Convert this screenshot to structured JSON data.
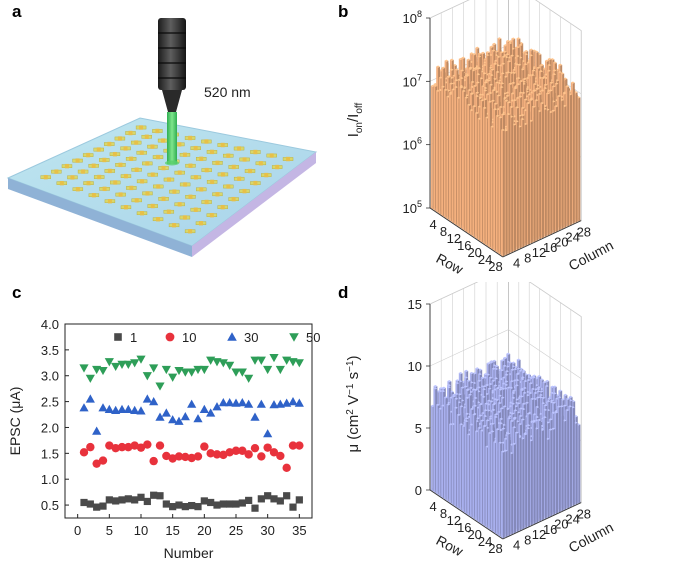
{
  "panel_labels": {
    "a": "a",
    "b": "b",
    "c": "c",
    "d": "d"
  },
  "panel_a": {
    "wavelength_label": "520 nm",
    "array_size": 10
  },
  "colors": {
    "bar_onoff": "#f4b07e",
    "bar_mobility": "#a9b0ee",
    "series_1": "#4a4a4a",
    "series_10": "#e8323c",
    "series_30": "#2f62c8",
    "series_50": "#2e9e58"
  },
  "chart_data": [
    {
      "id": "b",
      "type": "bar3d",
      "title": "",
      "zlabel": "I_on/I_off",
      "zlabel_main": "I",
      "zlabel_sub1": "on",
      "zlabel_mid": "/I",
      "zlabel_sub2": "off",
      "zscale": "log",
      "zlim": [
        100000,
        100000000
      ],
      "zticks": [
        {
          "base": "10",
          "exp": "5",
          "value": 100000
        },
        {
          "base": "10",
          "exp": "6",
          "value": 1000000
        },
        {
          "base": "10",
          "exp": "7",
          "value": 10000000
        },
        {
          "base": "10",
          "exp": "8",
          "value": 100000000
        }
      ],
      "rows": 28,
      "columns": 28,
      "row_label": "Row",
      "column_label": "Column",
      "row_ticks": [
        "4",
        "8",
        "12",
        "16",
        "20",
        "24",
        "28"
      ],
      "column_ticks": [
        "4",
        "8",
        "12",
        "16",
        "20",
        "24",
        "28"
      ],
      "value_range": [
        5000000,
        20000000
      ],
      "typical_value": 10000000
    },
    {
      "id": "c",
      "type": "scatter",
      "xlabel": "Number",
      "ylabel": "EPSC (μA)",
      "xlim": [
        -2,
        37
      ],
      "ylim": [
        0.25,
        4.0
      ],
      "xticks": [
        "0",
        "5",
        "10",
        "15",
        "20",
        "25",
        "30",
        "35"
      ],
      "yticks": [
        "0.5",
        "1.0",
        "1.5",
        "2.0",
        "2.5",
        "3.0",
        "3.5",
        "4.0"
      ],
      "x": [
        1,
        2,
        3,
        4,
        5,
        6,
        7,
        8,
        9,
        10,
        11,
        12,
        13,
        14,
        15,
        16,
        17,
        18,
        19,
        20,
        21,
        22,
        23,
        24,
        25,
        26,
        27,
        28,
        29,
        30,
        31,
        32,
        33,
        34,
        35
      ],
      "series": [
        {
          "name": "1",
          "marker": "square",
          "values": [
            0.55,
            0.52,
            0.46,
            0.48,
            0.6,
            0.58,
            0.6,
            0.62,
            0.6,
            0.65,
            0.57,
            0.69,
            0.68,
            0.52,
            0.47,
            0.5,
            0.47,
            0.49,
            0.47,
            0.58,
            0.55,
            0.5,
            0.52,
            0.52,
            0.52,
            0.54,
            0.59,
            0.44,
            0.62,
            0.68,
            0.62,
            0.58,
            0.68,
            0.46,
            0.6
          ]
        },
        {
          "name": "10",
          "marker": "circle",
          "values": [
            1.52,
            1.62,
            1.3,
            1.36,
            1.65,
            1.6,
            1.62,
            1.62,
            1.65,
            1.61,
            1.67,
            1.35,
            1.65,
            1.45,
            1.4,
            1.44,
            1.43,
            1.41,
            1.44,
            1.63,
            1.5,
            1.48,
            1.47,
            1.52,
            1.55,
            1.55,
            1.48,
            1.6,
            1.44,
            1.61,
            1.52,
            1.45,
            1.22,
            1.65,
            1.65
          ]
        },
        {
          "name": "30",
          "marker": "triangle-up",
          "values": [
            2.38,
            2.55,
            1.93,
            2.38,
            2.35,
            2.33,
            2.35,
            2.35,
            2.33,
            2.32,
            2.55,
            2.5,
            2.2,
            2.28,
            2.15,
            2.12,
            2.21,
            2.45,
            2.17,
            2.35,
            2.28,
            2.4,
            2.48,
            2.48,
            2.47,
            2.48,
            2.45,
            2.2,
            2.45,
            1.88,
            2.44,
            2.45,
            2.47,
            2.5,
            2.47
          ]
        },
        {
          "name": "50",
          "marker": "triangle-down",
          "values": [
            3.15,
            2.95,
            3.12,
            3.1,
            3.27,
            3.18,
            3.22,
            3.22,
            3.25,
            3.32,
            3.0,
            3.15,
            2.8,
            3.12,
            2.97,
            3.1,
            3.07,
            3.07,
            3.12,
            3.12,
            3.3,
            3.27,
            3.25,
            3.2,
            3.07,
            3.07,
            2.95,
            3.3,
            3.3,
            3.12,
            3.35,
            3.12,
            3.3,
            3.27,
            3.25
          ]
        }
      ],
      "legend": "top",
      "grid": false
    },
    {
      "id": "d",
      "type": "bar3d",
      "title": "",
      "zlabel": "μ (cm² V⁻¹ s⁻¹)",
      "zlabel_pre": "μ (cm",
      "zlabel_sup1": "2",
      "zlabel_mid1": " V",
      "zlabel_sup2": "−1",
      "zlabel_mid2": " s",
      "zlabel_sup3": "−1",
      "zlabel_post": ")",
      "zscale": "linear",
      "zlim": [
        0,
        15
      ],
      "zticks": [
        {
          "label": "0",
          "value": 0
        },
        {
          "label": "5",
          "value": 5
        },
        {
          "label": "10",
          "value": 10
        },
        {
          "label": "15",
          "value": 15
        }
      ],
      "rows": 28,
      "columns": 28,
      "row_label": "Row",
      "column_label": "Column",
      "row_ticks": [
        "4",
        "8",
        "12",
        "16",
        "20",
        "24",
        "28"
      ],
      "column_ticks": [
        "4",
        "8",
        "12",
        "16",
        "20",
        "24",
        "28"
      ],
      "value_range": [
        5.5,
        8.5
      ],
      "typical_value": 7
    }
  ]
}
